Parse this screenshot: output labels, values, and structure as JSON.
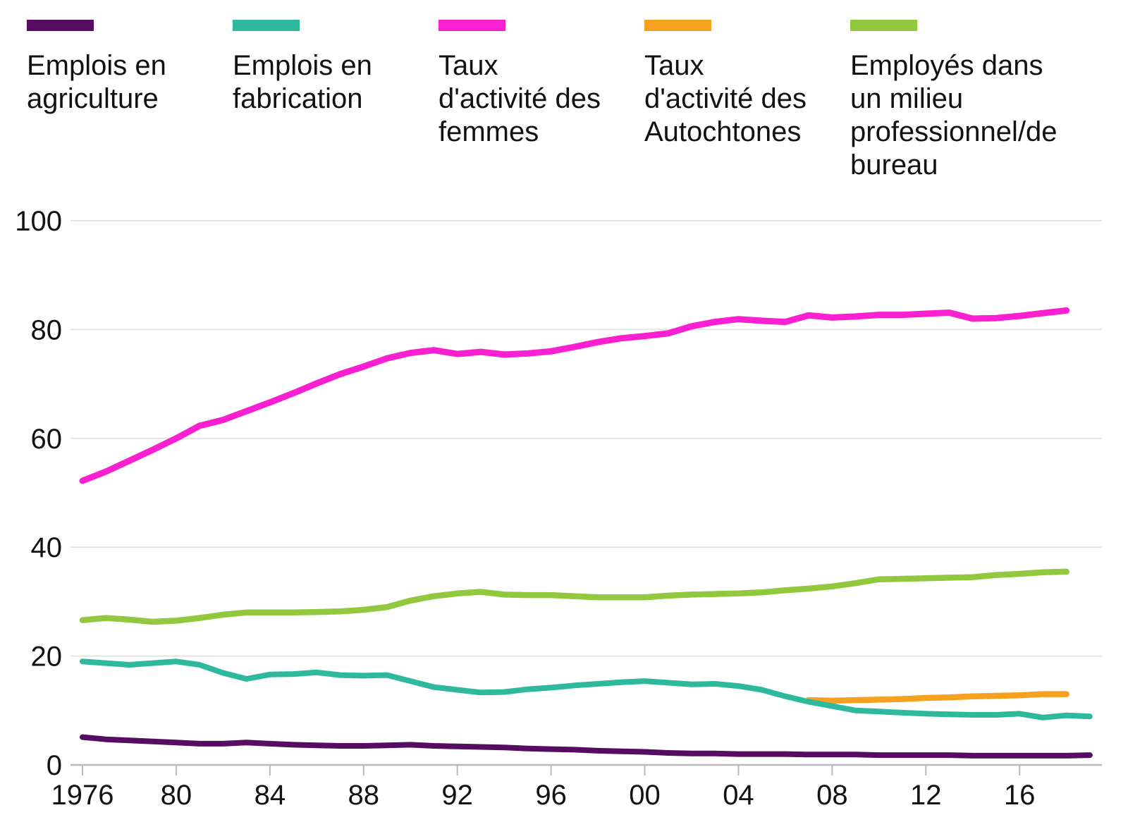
{
  "chart_data": {
    "type": "line",
    "title": "",
    "xlabel": "",
    "ylabel": "",
    "xlim": [
      1976,
      2019
    ],
    "ylim": [
      0,
      100
    ],
    "grid": "horizontal",
    "legend_position": "top",
    "background_color": "#ffffff",
    "gridline_color": "#e3e3e3",
    "axis_color": "#b9b9b9",
    "text_color": "#121212",
    "y_ticks": [
      0,
      20,
      40,
      60,
      80,
      100
    ],
    "x_ticks": [
      {
        "label": "1976",
        "year": 1976
      },
      {
        "label": "80",
        "year": 1980
      },
      {
        "label": "84",
        "year": 1984
      },
      {
        "label": "88",
        "year": 1988
      },
      {
        "label": "92",
        "year": 1992
      },
      {
        "label": "96",
        "year": 1996
      },
      {
        "label": "00",
        "year": 2000
      },
      {
        "label": "04",
        "year": 2004
      },
      {
        "label": "08",
        "year": 2008
      },
      {
        "label": "12",
        "year": 2012
      },
      {
        "label": "16",
        "year": 2016
      }
    ],
    "series": [
      {
        "id": "agriculture",
        "name": "Emplois en agriculture",
        "label_lines": [
          "Emplois en",
          "agriculture"
        ],
        "color": "#570c64",
        "stroke_width": 8,
        "start_year": 1976,
        "values": [
          5.1,
          4.7,
          4.5,
          4.3,
          4.1,
          3.9,
          3.9,
          4.1,
          3.9,
          3.7,
          3.6,
          3.5,
          3.5,
          3.6,
          3.7,
          3.5,
          3.4,
          3.3,
          3.2,
          3.0,
          2.9,
          2.8,
          2.6,
          2.5,
          2.4,
          2.2,
          2.1,
          2.1,
          2.0,
          2.0,
          2.0,
          1.9,
          1.9,
          1.9,
          1.8,
          1.8,
          1.8,
          1.8,
          1.7,
          1.7,
          1.7,
          1.7,
          1.7,
          1.8
        ]
      },
      {
        "id": "fabrication",
        "name": "Emplois en fabrication",
        "label_lines": [
          "Emplois en",
          "fabrication"
        ],
        "color": "#2eb99d",
        "stroke_width": 8,
        "start_year": 1976,
        "values": [
          19.0,
          18.7,
          18.4,
          18.7,
          19.0,
          18.4,
          16.9,
          15.8,
          16.6,
          16.7,
          17.0,
          16.5,
          16.4,
          16.5,
          15.4,
          14.3,
          13.8,
          13.3,
          13.4,
          13.9,
          14.2,
          14.6,
          14.9,
          15.2,
          15.4,
          15.1,
          14.8,
          14.9,
          14.5,
          13.8,
          12.6,
          11.6,
          10.8,
          10.0,
          9.8,
          9.6,
          9.4,
          9.3,
          9.2,
          9.2,
          9.4,
          8.7,
          9.1,
          8.9
        ]
      },
      {
        "id": "femmes",
        "name": "Taux d'activité des femmes",
        "label_lines": [
          "Taux",
          "d'activité des",
          "femmes"
        ],
        "color": "#fa1fd1",
        "stroke_width": 9,
        "start_year": 1976,
        "values": [
          52.2,
          53.9,
          55.9,
          57.9,
          60.0,
          62.3,
          63.4,
          65.0,
          66.6,
          68.3,
          70.1,
          71.8,
          73.2,
          74.7,
          75.7,
          76.2,
          75.5,
          75.9,
          75.4,
          75.6,
          76.0,
          76.8,
          77.7,
          78.4,
          78.8,
          79.3,
          80.6,
          81.4,
          81.9,
          81.6,
          81.4,
          82.6,
          82.2,
          82.4,
          82.7,
          82.7,
          82.9,
          83.1,
          82.0,
          82.1,
          82.5,
          83.0,
          83.5
        ]
      },
      {
        "id": "autochtones",
        "name": "Taux d'activité des Autochtones",
        "label_lines": [
          "Taux",
          "d'activité des",
          "Autochtones"
        ],
        "color": "#f6a020",
        "stroke_width": 8.5,
        "start_year": 2007,
        "values": [
          11.9,
          11.8,
          11.9,
          12.0,
          12.1,
          12.3,
          12.4,
          12.6,
          12.7,
          12.8,
          13.0,
          13.0
        ]
      },
      {
        "id": "bureau",
        "name": "Employés dans un milieu professionnel/de bureau",
        "label_lines": [
          "Employés dans",
          "un milieu",
          "professionnel/de",
          "bureau"
        ],
        "color": "#92c83e",
        "stroke_width": 8.5,
        "start_year": 1976,
        "values": [
          26.6,
          27.0,
          26.7,
          26.3,
          26.5,
          27.0,
          27.6,
          28.0,
          28.0,
          28.0,
          28.1,
          28.2,
          28.5,
          29.0,
          30.2,
          31.0,
          31.5,
          31.8,
          31.3,
          31.2,
          31.2,
          31.0,
          30.8,
          30.8,
          30.8,
          31.1,
          31.3,
          31.4,
          31.5,
          31.7,
          32.1,
          32.4,
          32.8,
          33.4,
          34.1,
          34.2,
          34.3,
          34.4,
          34.5,
          34.9,
          35.1,
          35.4,
          35.5
        ]
      }
    ]
  }
}
